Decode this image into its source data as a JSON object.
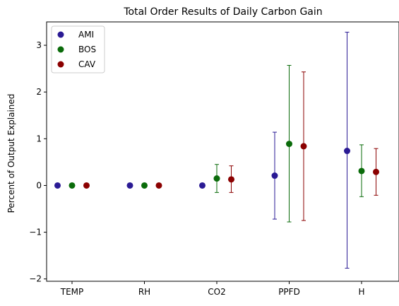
{
  "chart_data": {
    "type": "scatter",
    "title": "Total Order Results of Daily Carbon Gain",
    "xlabel": "",
    "ylabel": "Percent of Output Explained",
    "categories": [
      "TEMP",
      "RH",
      "CO2",
      "PPFD",
      "H"
    ],
    "yticks": [
      -2,
      -1,
      0,
      1,
      2,
      3
    ],
    "ylim": [
      -2.05,
      3.5
    ],
    "grid": false,
    "legend_position": "upper-left",
    "error_bars": true,
    "series": [
      {
        "name": "AMI",
        "color": "#2a1a94",
        "values": [
          0,
          0,
          0,
          0.21,
          0.74
        ],
        "err_low": [
          0,
          0,
          0,
          -0.72,
          -1.77
        ],
        "err_high": [
          0,
          0,
          0,
          1.14,
          3.28
        ]
      },
      {
        "name": "BOS",
        "color": "#0a6b0a",
        "values": [
          0,
          0,
          0.15,
          0.89,
          0.31
        ],
        "err_low": [
          0,
          0,
          -0.15,
          -0.78,
          -0.24
        ],
        "err_high": [
          0,
          0,
          0.45,
          2.57,
          0.87
        ]
      },
      {
        "name": "CAV",
        "color": "#8b0000",
        "values": [
          0,
          0,
          0.13,
          0.84,
          0.29
        ],
        "err_low": [
          0,
          0,
          -0.15,
          -0.75,
          -0.21
        ],
        "err_high": [
          0,
          0,
          0.42,
          2.43,
          0.79
        ]
      }
    ]
  }
}
